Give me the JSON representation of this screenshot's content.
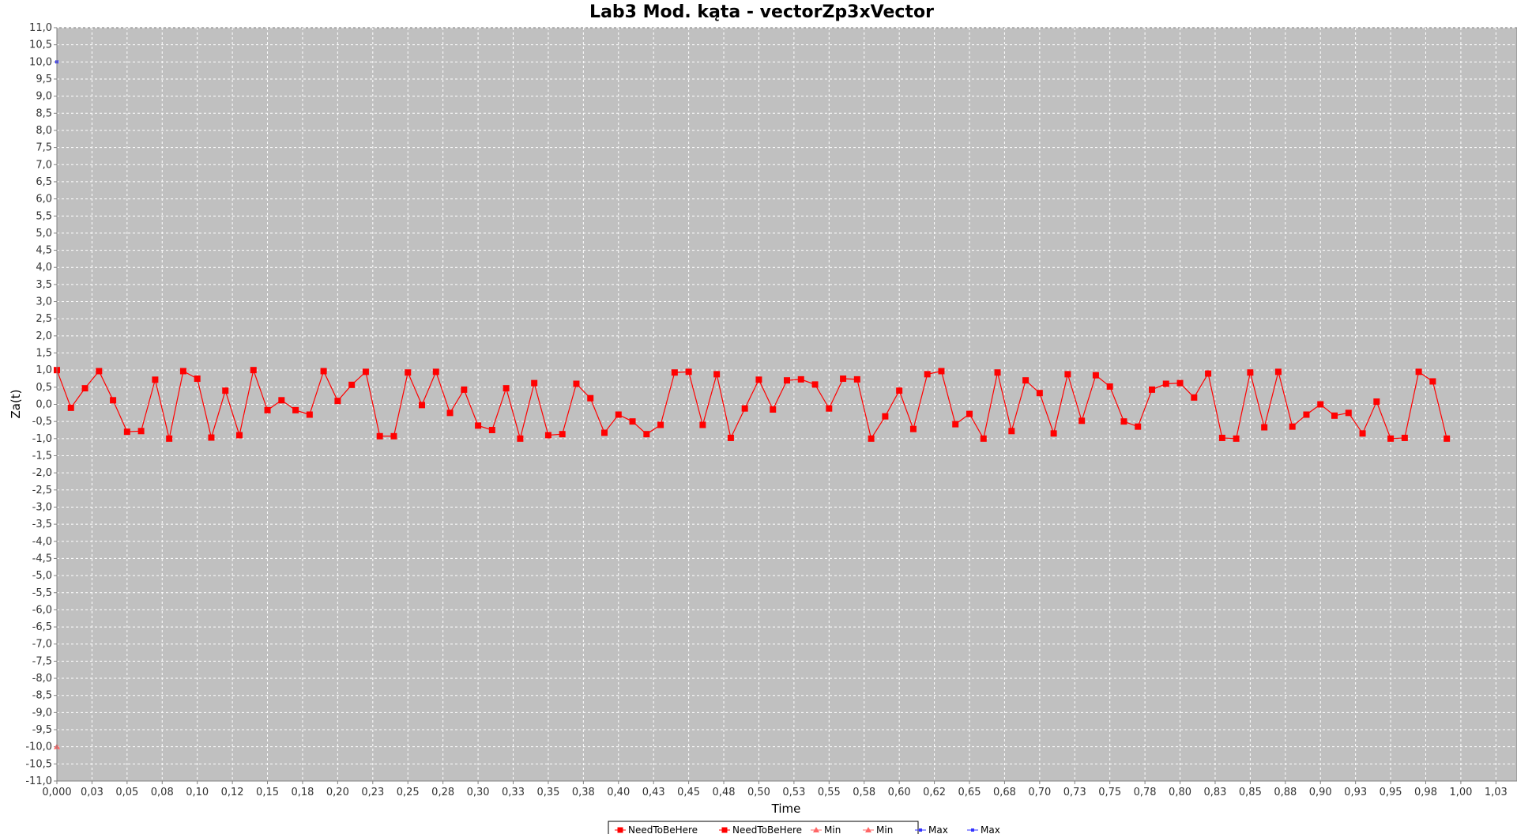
{
  "chart_data": {
    "type": "line",
    "title": "Lab3 Mod. kąta - vectorZp3xVector",
    "xlabel": "Time",
    "ylabel": "Za(t)",
    "xlim": [
      0.0,
      1.04
    ],
    "ylim": [
      -11.0,
      11.0
    ],
    "grid": true,
    "legend_position": "bottom",
    "x_ticks": [
      "0,000",
      "0,03",
      "0,05",
      "0,08",
      "0,10",
      "0,12",
      "0,15",
      "0,18",
      "0,20",
      "0,23",
      "0,25",
      "0,28",
      "0,30",
      "0,33",
      "0,35",
      "0,38",
      "0,40",
      "0,43",
      "0,45",
      "0,48",
      "0,50",
      "0,53",
      "0,55",
      "0,58",
      "0,60",
      "0,62",
      "0,65",
      "0,68",
      "0,70",
      "0,73",
      "0,75",
      "0,78",
      "0,80",
      "0,83",
      "0,85",
      "0,88",
      "0,90",
      "0,93",
      "0,95",
      "0,98",
      "1,00",
      "1,03"
    ],
    "y_ticks": [
      "11,0",
      "10,5",
      "10,0",
      "9,5",
      "9,0",
      "8,5",
      "8,0",
      "7,5",
      "7,0",
      "6,5",
      "6,0",
      "5,5",
      "5,0",
      "4,5",
      "4,0",
      "3,5",
      "3,0",
      "2,5",
      "2,0",
      "1,5",
      "1,0",
      "0,5",
      "0,0",
      "-0,5",
      "-1,0",
      "-1,5",
      "-2,0",
      "-2,5",
      "-3,0",
      "-3,5",
      "-4,0",
      "-4,5",
      "-5,0",
      "-5,5",
      "-6,0",
      "-6,5",
      "-7,0",
      "-7,5",
      "-8,0",
      "-8,5",
      "-9,0",
      "-9,5",
      "-10,0",
      "-10,5",
      "-11,0"
    ],
    "colors": {
      "plot_background": "#c0c0c0",
      "grid": "#ffffff",
      "series_red": "#ff0000",
      "series_min": "#ff6666",
      "series_max": "#3333ff"
    },
    "x": [
      0.0,
      0.01,
      0.02,
      0.03,
      0.04,
      0.05,
      0.06,
      0.07,
      0.08,
      0.09,
      0.1,
      0.11,
      0.12,
      0.13,
      0.14,
      0.15,
      0.16,
      0.17,
      0.18,
      0.19,
      0.2,
      0.21,
      0.22,
      0.23,
      0.24,
      0.25,
      0.26,
      0.27,
      0.28,
      0.29,
      0.3,
      0.31,
      0.32,
      0.33,
      0.34,
      0.35,
      0.36,
      0.37,
      0.38,
      0.39,
      0.4,
      0.41,
      0.42,
      0.43,
      0.44,
      0.45,
      0.46,
      0.47,
      0.48,
      0.49,
      0.5,
      0.51,
      0.52,
      0.53,
      0.54,
      0.55,
      0.56,
      0.57,
      0.58,
      0.59,
      0.6,
      0.61,
      0.62,
      0.63,
      0.64,
      0.65,
      0.66,
      0.67,
      0.68,
      0.69,
      0.7,
      0.71,
      0.72,
      0.73,
      0.74,
      0.75,
      0.76,
      0.77,
      0.78,
      0.79,
      0.8,
      0.81,
      0.82,
      0.83,
      0.84,
      0.85,
      0.86,
      0.87,
      0.88,
      0.89,
      0.9,
      0.91,
      0.92,
      0.93,
      0.94,
      0.95,
      0.96,
      0.97,
      0.98,
      0.99
    ],
    "series": [
      {
        "name": "NeedToBeHere",
        "values": [
          1.0,
          -0.1,
          0.47,
          0.97,
          0.12,
          -0.8,
          -0.78,
          0.72,
          -1.0,
          0.97,
          0.75,
          -0.97,
          0.4,
          -0.9,
          1.0,
          -0.17,
          0.12,
          -0.17,
          -0.3,
          0.97,
          0.1,
          0.57,
          0.95,
          -0.93,
          -0.93,
          0.93,
          -0.02,
          0.95,
          -0.25,
          0.43,
          -0.62,
          -0.75,
          0.47,
          -1.0,
          0.62,
          -0.9,
          -0.87,
          0.6,
          0.18,
          -0.83,
          -0.3,
          -0.5,
          -0.87,
          -0.6,
          0.93,
          0.95,
          -0.6,
          0.88,
          -0.98,
          -0.12,
          0.72,
          -0.15,
          0.7,
          0.73,
          0.58,
          -0.12,
          0.75,
          0.73,
          -1.0,
          -0.35,
          0.4,
          -0.72,
          0.88,
          0.97,
          -0.58,
          -0.28,
          -1.0,
          0.93,
          -0.78,
          0.7,
          0.33,
          -0.85,
          0.88,
          -0.48,
          0.85,
          0.52,
          -0.5,
          -0.65,
          0.43,
          0.6,
          0.62,
          0.2,
          0.9,
          -0.98,
          -1.0,
          0.93,
          -0.67,
          0.95,
          -0.65,
          -0.3,
          0.0,
          -0.33,
          -0.25,
          -0.85,
          0.08,
          -1.0,
          -0.98,
          0.95,
          0.67,
          -1.0
        ]
      },
      {
        "name": "Min",
        "points": [
          [
            0.0,
            -10.0
          ]
        ]
      },
      {
        "name": "Max",
        "points": [
          [
            0.0,
            10.0
          ]
        ]
      }
    ],
    "legend": [
      {
        "label": "NeedToBeHere",
        "marker": "square",
        "color": "#ff0000"
      },
      {
        "label": "NeedToBeHere",
        "marker": "square",
        "color": "#ff0000"
      },
      {
        "label": "Min",
        "marker": "triangle",
        "color": "#ff6666"
      },
      {
        "label": "Min",
        "marker": "triangle",
        "color": "#ff6666"
      },
      {
        "label": "Max",
        "marker": "square",
        "color": "#3333ff"
      },
      {
        "label": "Max",
        "marker": "square",
        "color": "#3333ff"
      }
    ]
  }
}
